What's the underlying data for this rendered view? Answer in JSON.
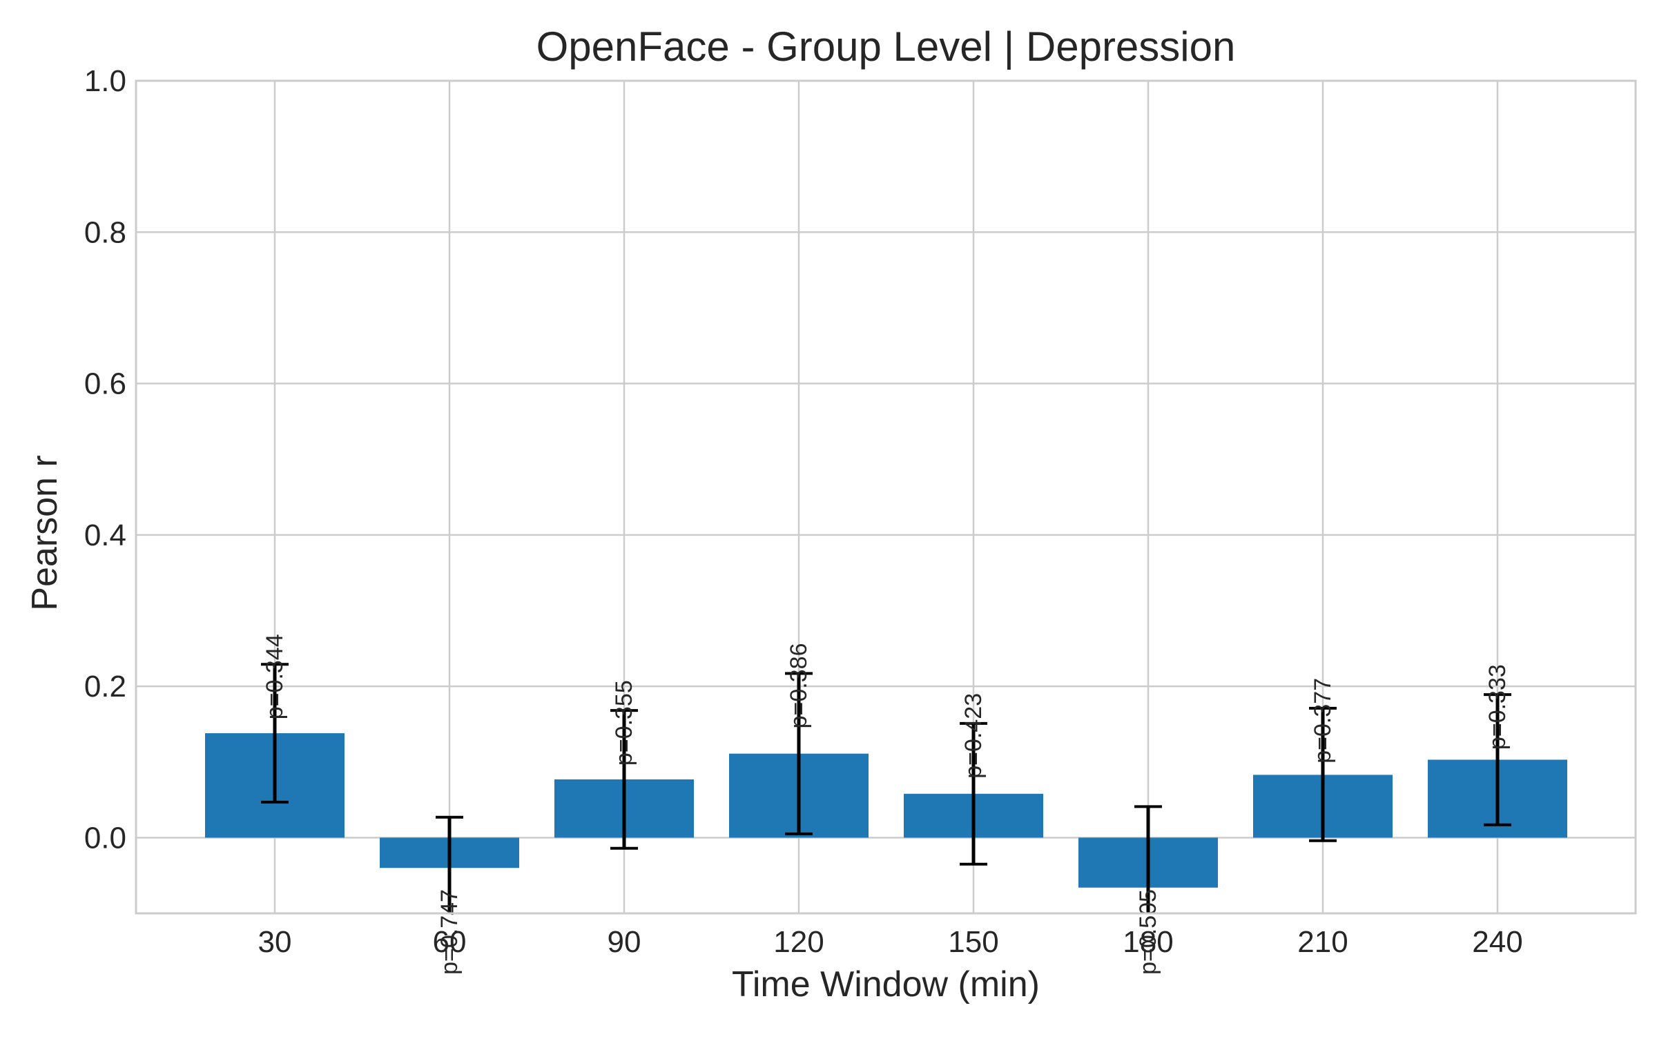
{
  "chart_data": {
    "type": "bar",
    "title": "OpenFace - Group Level | Depression",
    "xlabel": "Time Window (min)",
    "ylabel": "Pearson r",
    "categories": [
      "30",
      "60",
      "90",
      "120",
      "150",
      "180",
      "210",
      "240"
    ],
    "values": [
      0.138,
      -0.04,
      0.077,
      0.111,
      0.058,
      -0.066,
      0.083,
      0.103
    ],
    "error_low": [
      0.047,
      -0.11,
      -0.014,
      0.005,
      -0.035,
      -0.11,
      -0.004,
      0.017
    ],
    "error_high": [
      0.229,
      0.027,
      0.168,
      0.217,
      0.151,
      0.041,
      0.171,
      0.189
    ],
    "p_values": [
      "p=0.344",
      "p=0.747",
      "p=0.355",
      "p=0.386",
      "p=0.423",
      "p=0.505",
      "p=0.377",
      "p=0.333"
    ],
    "ylim": [
      -0.1,
      1.0
    ],
    "yticks": [
      "0.0",
      "0.2",
      "0.4",
      "0.6",
      "0.8",
      "1.0"
    ],
    "grid": true,
    "bar_color": "#1f77b4",
    "error_color": "#000000",
    "grid_color": "#cccccc",
    "text_color": "#262626"
  }
}
